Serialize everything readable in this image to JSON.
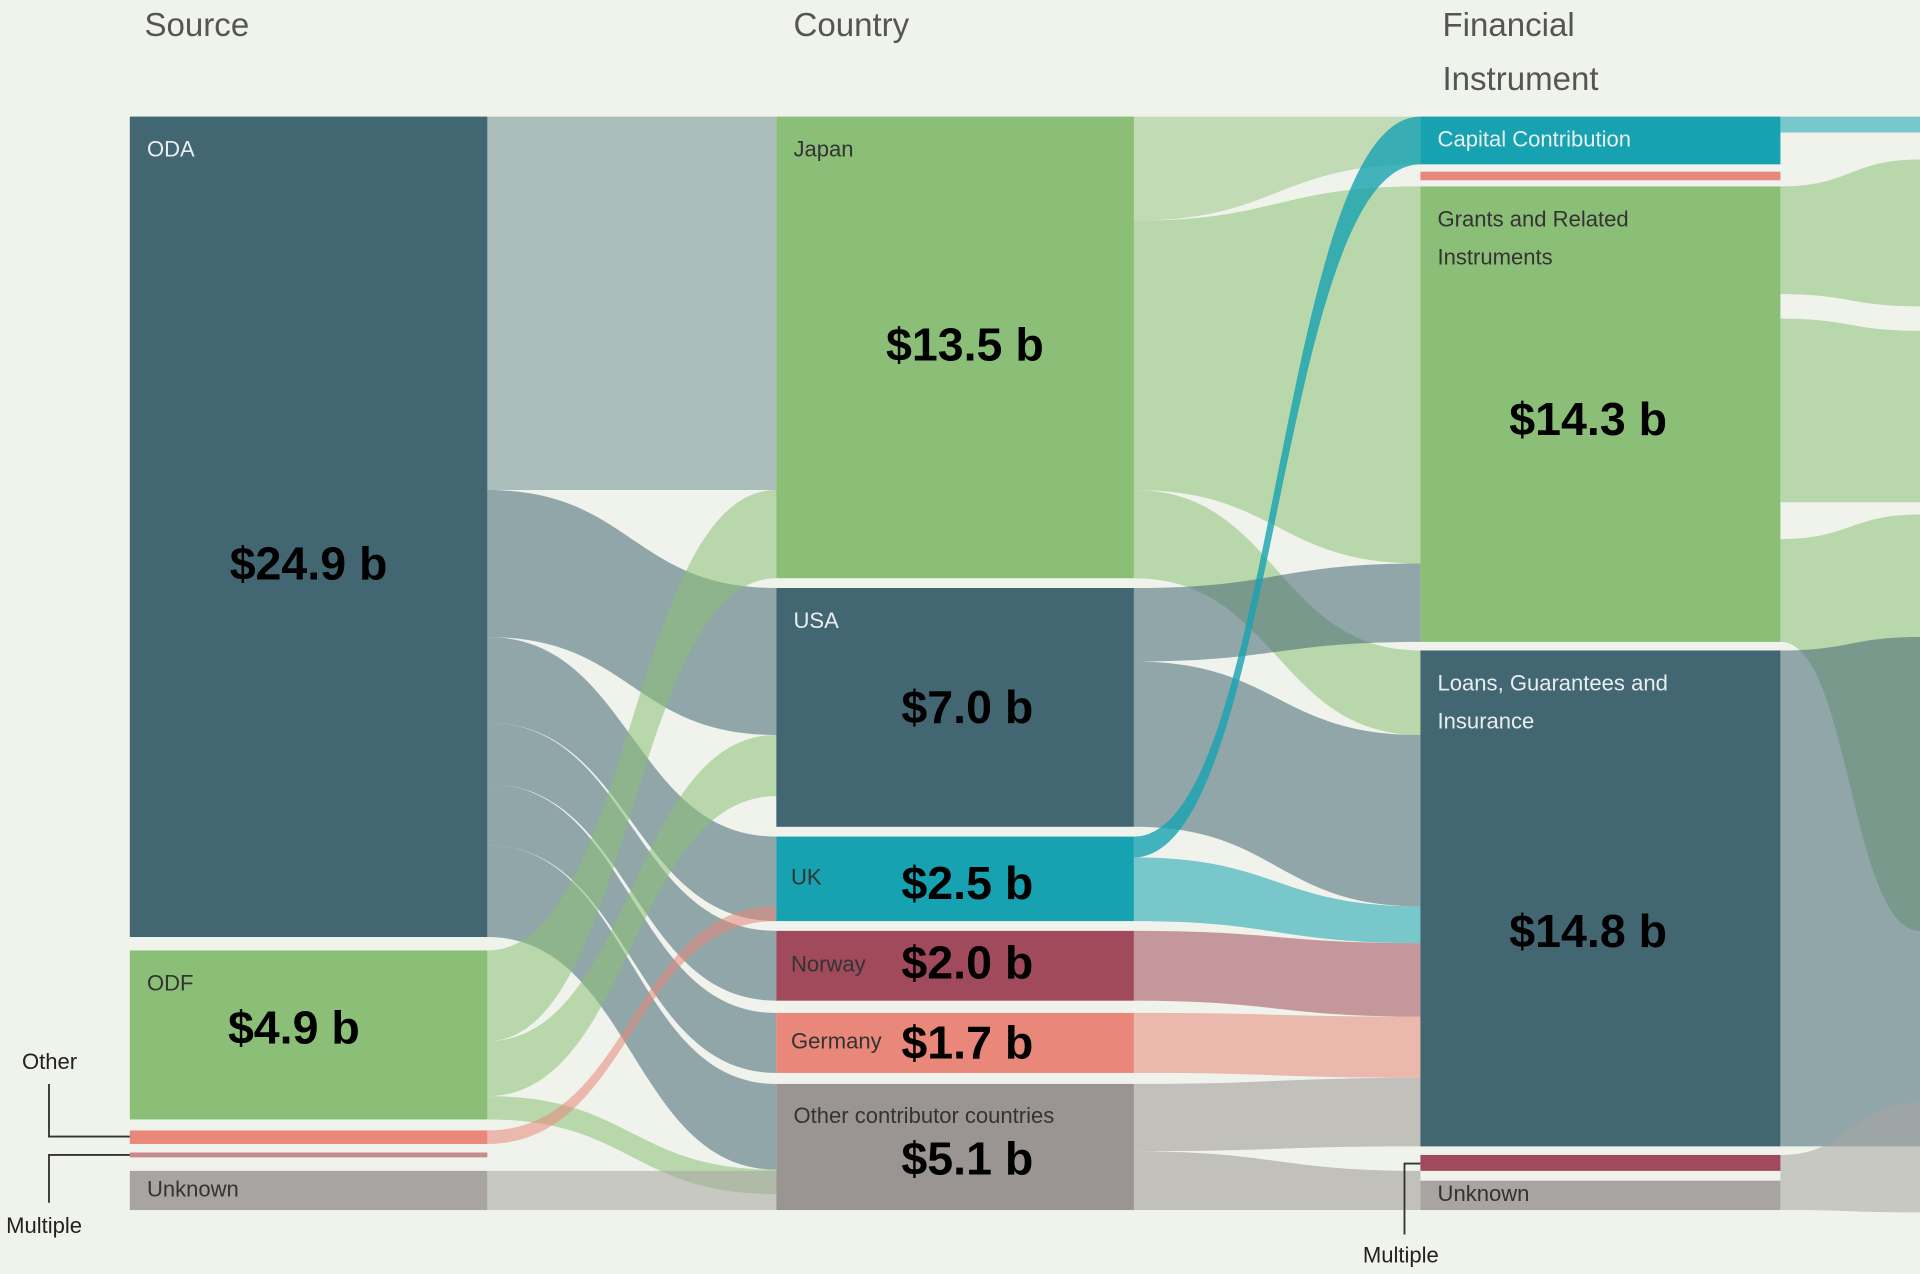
{
  "columns": [
    {
      "title_lines": [
        "Source"
      ],
      "nodes": [
        {
          "label_lines": [
            "ODA"
          ],
          "value": "$24.9 b"
        },
        {
          "label_lines": [
            "ODF"
          ],
          "value": "$4.9 b"
        },
        {
          "label_lines": [
            "Unknown"
          ]
        }
      ]
    },
    {
      "title_lines": [
        "Country"
      ],
      "nodes": [
        {
          "label_lines": [
            "Japan"
          ],
          "value": "$13.5 b"
        },
        {
          "label_lines": [
            "USA"
          ],
          "value": "$7.0 b"
        },
        {
          "label_lines": [
            "UK"
          ],
          "value": "$2.5 b"
        },
        {
          "label_lines": [
            "Norway"
          ],
          "value": "$2.0 b"
        },
        {
          "label_lines": [
            "Germany"
          ],
          "value": "$1.7 b"
        },
        {
          "label_lines": [
            "Other contributor countries"
          ],
          "value": "$5.1 b"
        }
      ]
    },
    {
      "title_lines": [
        "Financial",
        "Instrument"
      ],
      "nodes": [
        {
          "label_lines": [
            "Capital Contribution"
          ]
        },
        {
          "label_lines": [
            "Grants and Related",
            "Instruments"
          ],
          "value": "$14.3 b"
        },
        {
          "label_lines": [
            "Loans, Guarantees and",
            "Insurance"
          ],
          "value": "$14.8 b"
        },
        {
          "label_lines": [
            "Unknown"
          ]
        }
      ]
    }
  ],
  "annotations": [
    "Other",
    "Multiple",
    "Multiple"
  ]
}
